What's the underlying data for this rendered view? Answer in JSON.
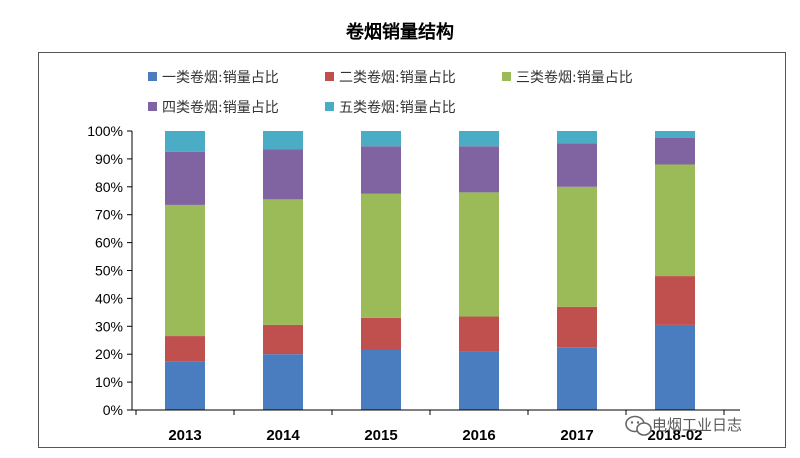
{
  "chart_data": {
    "type": "bar",
    "stacked": true,
    "title": "卷烟销量结构",
    "categories": [
      "2013",
      "2014",
      "2015",
      "2016",
      "2017",
      "2018-02"
    ],
    "series": [
      {
        "name": "一类卷烟:销量占比",
        "color": "#4a7cc0",
        "values": [
          17.5,
          20.0,
          21.5,
          21.0,
          22.5,
          30.5
        ]
      },
      {
        "name": "二类卷烟:销量占比",
        "color": "#c0504d",
        "values": [
          9.0,
          10.5,
          11.5,
          12.5,
          14.5,
          17.5
        ]
      },
      {
        "name": "三类卷烟:销量占比",
        "color": "#9bbb59",
        "values": [
          47.0,
          45.0,
          44.5,
          44.5,
          43.0,
          40.0
        ]
      },
      {
        "name": "四类卷烟:销量占比",
        "color": "#8064a2",
        "values": [
          19.0,
          18.0,
          17.0,
          16.5,
          15.5,
          9.5
        ]
      },
      {
        "name": "五类卷烟:销量占比",
        "color": "#4bacc6",
        "values": [
          7.5,
          6.5,
          5.5,
          5.5,
          4.5,
          2.5
        ]
      }
    ],
    "ylim": [
      0,
      100
    ],
    "ytick_labels": [
      "0%",
      "10%",
      "20%",
      "30%",
      "40%",
      "50%",
      "60%",
      "70%",
      "80%",
      "90%",
      "100%"
    ],
    "grid": false,
    "legend_position": "top"
  },
  "watermark": {
    "text": "电烟工业日志",
    "icon": "wechat-icon"
  }
}
